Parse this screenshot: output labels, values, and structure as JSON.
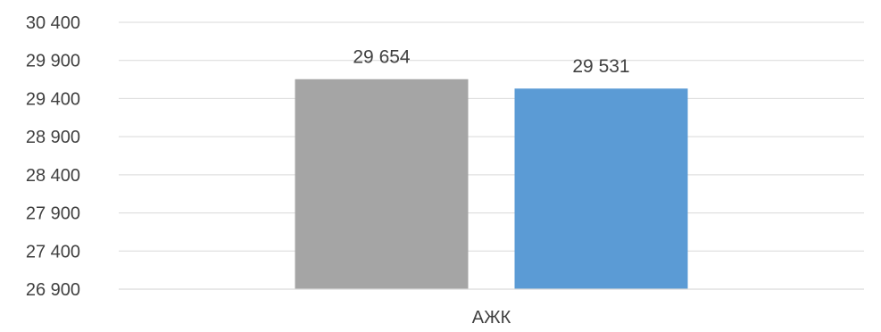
{
  "chart_data": {
    "type": "bar",
    "categories": [
      "АЖК"
    ],
    "series": [
      {
        "values": [
          29654
        ],
        "color": "#a5a5a5"
      },
      {
        "values": [
          29531
        ],
        "color": "#5b9bd5"
      }
    ],
    "data_labels": [
      "29 654",
      "29 531"
    ],
    "yticks": [
      26900,
      27400,
      27900,
      28400,
      28900,
      29400,
      29900,
      30400
    ],
    "ytick_labels": [
      "26 900",
      "27 400",
      "27 900",
      "28 400",
      "28 900",
      "29 400",
      "29 900",
      "30 400"
    ],
    "ylim": [
      26900,
      30400
    ],
    "grid": true,
    "legend": "none"
  }
}
